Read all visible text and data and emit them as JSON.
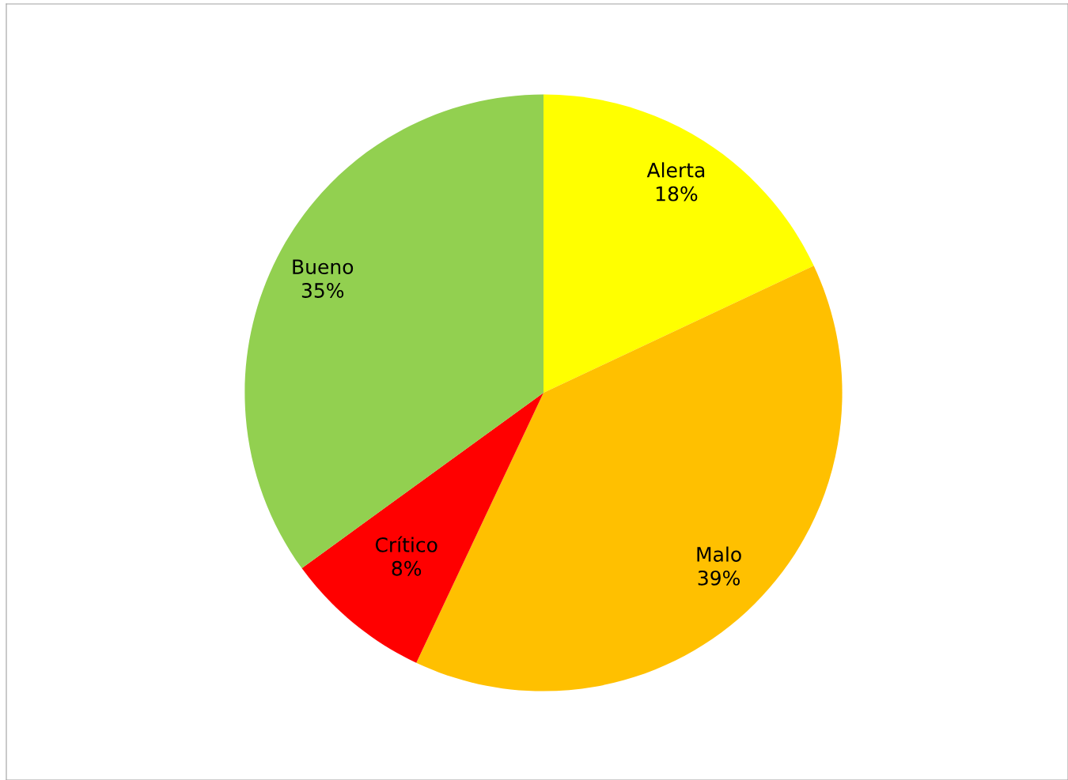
{
  "chart_data": {
    "type": "pie",
    "categories": [
      "Alerta",
      "Malo",
      "Crítico",
      "Bueno"
    ],
    "values": [
      18,
      39,
      8,
      35
    ],
    "colors": [
      "#ffff00",
      "#ffc000",
      "#ff0000",
      "#92d050"
    ],
    "value_labels": [
      "18%",
      "39%",
      "8%",
      "35%"
    ]
  }
}
